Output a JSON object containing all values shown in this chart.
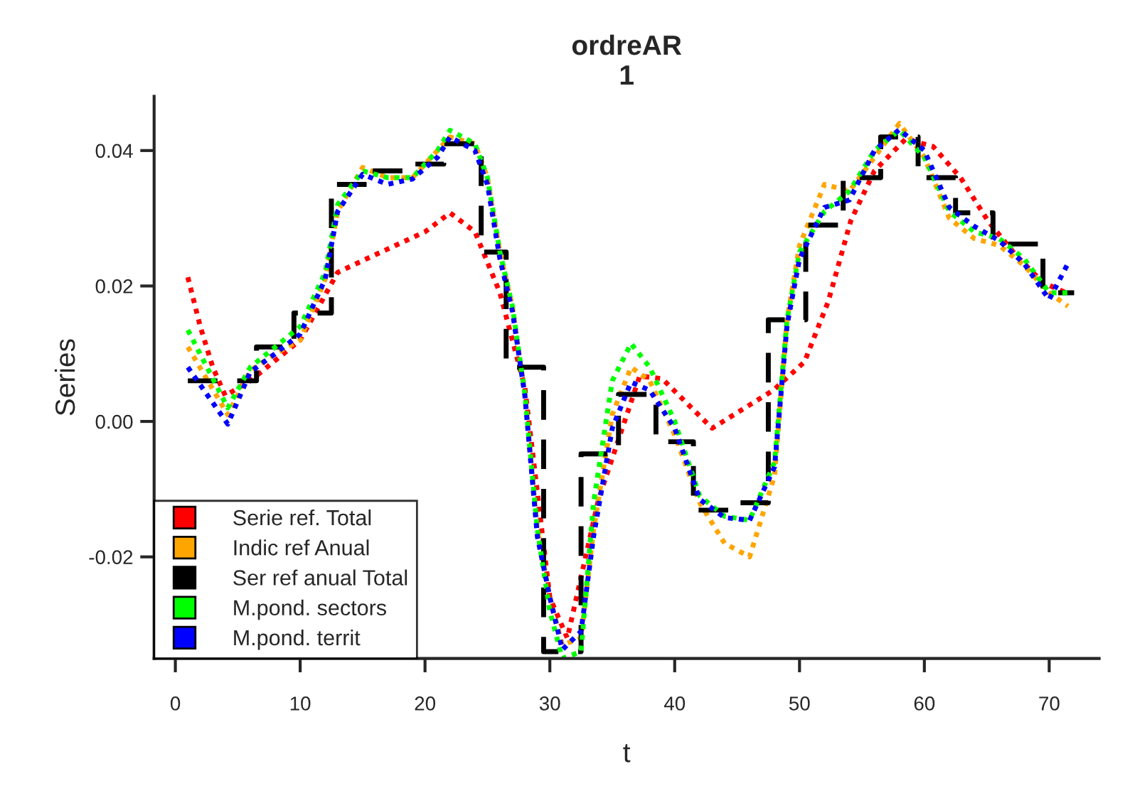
{
  "chart_data": {
    "type": "line",
    "title": "ordreAR\n1",
    "xlabel": "t",
    "ylabel": "Series",
    "xlim": [
      -1.7,
      74
    ],
    "ylim": [
      -0.035,
      0.048
    ],
    "xticks": [
      0,
      10,
      20,
      30,
      40,
      50,
      60,
      70
    ],
    "yticks": [
      {
        "value": 0.04,
        "label": "0.04"
      },
      {
        "value": 0.02,
        "label": "0.02"
      },
      {
        "value": 0,
        "label": "0.00"
      },
      {
        "value": -0.02,
        "label": "-0.02"
      }
    ],
    "grid": false,
    "legend": "bottom left",
    "series": [
      {
        "name": "Serie ref. Total",
        "color": "#ff0000",
        "line_style": "dotted",
        "x": [
          1,
          2,
          3,
          4,
          6,
          8,
          10,
          13,
          16,
          20,
          22,
          24,
          26,
          28,
          30,
          31.4,
          33.9,
          37.2,
          39,
          43,
          47.9,
          50.4,
          52.3,
          54.1,
          56,
          58.5,
          60.7,
          62.9,
          65.1,
          67.3,
          69.5,
          71.6
        ],
        "values": [
          0.0213,
          0.014,
          0.008,
          0.0038,
          0.006,
          0.009,
          0.012,
          0.022,
          0.0246,
          0.028,
          0.0308,
          0.028,
          0.019,
          0.005,
          -0.026,
          -0.032,
          -0.0115,
          0.0067,
          0.0063,
          -0.001,
          0.0046,
          0.0088,
          0.0177,
          0.0296,
          0.037,
          0.0417,
          0.0406,
          0.036,
          0.0296,
          0.0246,
          0.0205,
          0.0188
        ]
      },
      {
        "name": "Indic ref Anual",
        "color": "#ffa500",
        "line_style": "dotted",
        "x": [
          1,
          4.2,
          6,
          8,
          10,
          12,
          13,
          15,
          17,
          19,
          21,
          22,
          24,
          25,
          26,
          27,
          28,
          29,
          30,
          31,
          32.5,
          33.5,
          35,
          36.5,
          38,
          40,
          42,
          44,
          46,
          48,
          49,
          50,
          52,
          54,
          56,
          58,
          60,
          62,
          64,
          66,
          68,
          70,
          71.5
        ],
        "values": [
          0.011,
          0.001,
          0.0075,
          0.01,
          0.012,
          0.021,
          0.031,
          0.0375,
          0.036,
          0.036,
          0.04,
          0.042,
          0.041,
          0.036,
          0.025,
          0.017,
          0.004,
          -0.016,
          -0.026,
          -0.033,
          -0.032,
          -0.016,
          0.001,
          0.008,
          0.006,
          -0.002,
          -0.012,
          -0.018,
          -0.02,
          -0.008,
          0.015,
          0.026,
          0.035,
          0.034,
          0.039,
          0.044,
          0.039,
          0.03,
          0.027,
          0.026,
          0.023,
          0.019,
          0.017
        ]
      },
      {
        "name": "Ser ref anual Total",
        "color": "#000000",
        "type": "step",
        "line_style": "dashed",
        "x": [
          1,
          3.5,
          6.5,
          9.5,
          12.5,
          15.5,
          18.5,
          21.5,
          24.5,
          26.5,
          29.5,
          32.5,
          35.5,
          38.5,
          41.5,
          44.5,
          47.5,
          50.5,
          53.5,
          56.5,
          59.5,
          62.5,
          65.5,
          69.5,
          72
        ],
        "values": [
          0.006,
          0.006,
          0.011,
          0.016,
          0.035,
          0.037,
          0.038,
          0.041,
          0.025,
          0.008,
          -0.034,
          -0.0048,
          0.004,
          -0.003,
          -0.0131,
          -0.012,
          0.015,
          0.029,
          0.036,
          0.042,
          0.036,
          0.0308,
          0.0262,
          0.019,
          0.019
        ]
      },
      {
        "name": "M.pond. sectors",
        "color": "#00ff00",
        "line_style": "dotted",
        "x": [
          1,
          4.2,
          6,
          8,
          10,
          12,
          13,
          15,
          17,
          19,
          21,
          22,
          24,
          25,
          26,
          27,
          28,
          29,
          30,
          31,
          32.5,
          33.5,
          35,
          36.5,
          38,
          40,
          42,
          44,
          46,
          48,
          49,
          50,
          52,
          54,
          56,
          58,
          60,
          62,
          64,
          66,
          68,
          70,
          71.5
        ],
        "values": [
          0.0135,
          0.002,
          0.008,
          0.011,
          0.014,
          0.022,
          0.032,
          0.037,
          0.036,
          0.036,
          0.04,
          0.043,
          0.041,
          0.036,
          0.025,
          0.017,
          0.004,
          -0.016,
          -0.028,
          -0.035,
          -0.034,
          -0.012,
          0.006,
          0.0115,
          0.008,
          0.0,
          -0.011,
          -0.014,
          -0.0146,
          -0.006,
          0.015,
          0.025,
          0.031,
          0.034,
          0.04,
          0.043,
          0.039,
          0.031,
          0.028,
          0.027,
          0.024,
          0.019,
          0.019
        ]
      },
      {
        "name": "M.pond. territ",
        "color": "#0000ff",
        "line_style": "dotted",
        "x": [
          1,
          4.2,
          6,
          8,
          10,
          12,
          13,
          15,
          17,
          19,
          21,
          22,
          24,
          25,
          26,
          27,
          28,
          29,
          30,
          31,
          32.5,
          33.5,
          35,
          36.5,
          38,
          40,
          42,
          44,
          46,
          48,
          49,
          50,
          52,
          54,
          56,
          58,
          60,
          62,
          64,
          66,
          68,
          70,
          71.5
        ],
        "values": [
          0.008,
          -0.0004,
          0.0073,
          0.01,
          0.0129,
          0.021,
          0.031,
          0.0365,
          0.035,
          0.0358,
          0.039,
          0.042,
          0.04,
          0.035,
          0.024,
          0.0163,
          0.0038,
          -0.017,
          -0.026,
          -0.0337,
          -0.031,
          -0.017,
          -0.001,
          0.0058,
          0.0046,
          -0.001,
          -0.0115,
          -0.0142,
          -0.0146,
          -0.0067,
          0.0142,
          0.024,
          0.0316,
          0.0327,
          0.04,
          0.0431,
          0.04,
          0.0316,
          0.0288,
          0.0267,
          0.0233,
          0.018,
          0.0233
        ]
      }
    ]
  }
}
